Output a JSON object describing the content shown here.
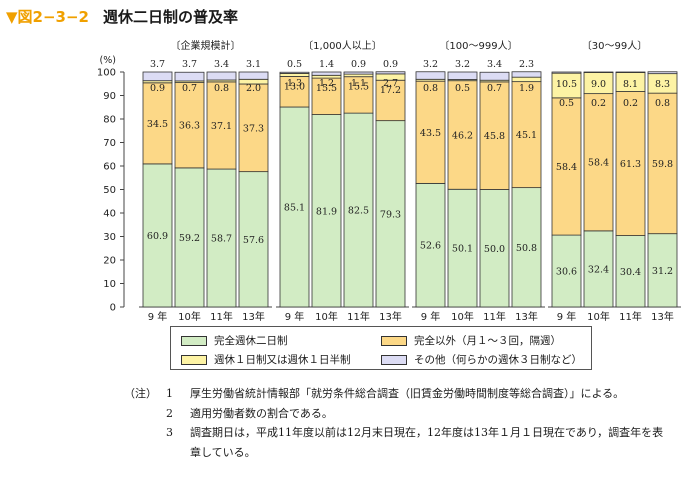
{
  "figure": {
    "number": "▼図2−3−2",
    "title": "週休二日制の普及率"
  },
  "chart_data": {
    "type": "bar",
    "stacked": true,
    "ylabel": "(%)",
    "ylim": [
      0,
      100
    ],
    "yticks": [
      0,
      10,
      20,
      30,
      40,
      50,
      60,
      70,
      80,
      90,
      100
    ],
    "colors": [
      "#d2ecc4",
      "#fcd887",
      "#fdf3a4",
      "#dcdcf4"
    ],
    "groups": [
      {
        "label": "〔企業規模計〕",
        "categories": [
          "9 年",
          "10年",
          "11年",
          "13年"
        ],
        "series": [
          {
            "name": "完全週休二日制",
            "values": [
              60.9,
              59.2,
              58.7,
              57.6
            ]
          },
          {
            "name": "完全以外（月１〜３回，隔週）",
            "values": [
              34.5,
              36.3,
              37.1,
              37.3
            ]
          },
          {
            "name": "週休１日制又は週休１日半制",
            "values": [
              0.9,
              0.7,
              0.8,
              2.0
            ]
          },
          {
            "name": "その他（何らかの週休３日制など）",
            "values": [
              3.7,
              3.7,
              3.4,
              3.1
            ]
          }
        ]
      },
      {
        "label": "〔1,000人以上〕",
        "categories": [
          "9 年",
          "10年",
          "11年",
          "13年"
        ],
        "series": [
          {
            "name": "完全週休二日制",
            "values": [
              85.1,
              81.9,
              82.5,
              79.3
            ]
          },
          {
            "name": "完全以外（月１〜３回，隔週）",
            "values": [
              13.0,
              15.5,
              15.5,
              17.2
            ]
          },
          {
            "name": "週休１日制又は週休１日半制",
            "values": [
              1.3,
              1.2,
              1.1,
              2.7
            ]
          },
          {
            "name": "その他（何らかの週休３日制など）",
            "values": [
              0.5,
              1.4,
              0.9,
              0.9
            ]
          }
        ]
      },
      {
        "label": "〔100〜999人〕",
        "categories": [
          "9 年",
          "10年",
          "11年",
          "13年"
        ],
        "series": [
          {
            "name": "完全週休二日制",
            "values": [
              52.6,
              50.1,
              50.0,
              50.8
            ]
          },
          {
            "name": "完全以外（月１〜３回，隔週）",
            "values": [
              43.5,
              46.2,
              45.8,
              45.1
            ]
          },
          {
            "name": "週休１日制又は週休１日半制",
            "values": [
              0.8,
              0.5,
              0.7,
              1.9
            ]
          },
          {
            "name": "その他（何らかの週休３日制など）",
            "values": [
              3.2,
              3.2,
              3.4,
              2.3
            ]
          }
        ]
      },
      {
        "label": "〔30〜99人〕",
        "categories": [
          "9 年",
          "10年",
          "11年",
          "13年"
        ],
        "series": [
          {
            "name": "完全週休二日制",
            "values": [
              30.6,
              32.4,
              30.4,
              31.2
            ]
          },
          {
            "name": "完全以外（月１〜３回，隔週）",
            "values": [
              58.4,
              58.4,
              61.3,
              59.8
            ]
          },
          {
            "name": "週休１日制又は週休１日半制",
            "values": [
              10.5,
              9.0,
              8.1,
              8.3
            ]
          },
          {
            "name": "その他（何らかの週休３日制など）",
            "values": [
              0.5,
              0.2,
              0.2,
              0.8
            ]
          }
        ]
      }
    ]
  },
  "legend": [
    {
      "label": "完全週休二日制",
      "color": "#d2ecc4"
    },
    {
      "label": "完全以外（月１〜３回，隔週）",
      "color": "#fcd887"
    },
    {
      "label": "週休１日制又は週休１日半制",
      "color": "#fdf3a4"
    },
    {
      "label": "その他（何らかの週休３日制など）",
      "color": "#dcdcf4"
    }
  ],
  "notes": {
    "label": "（注）",
    "items": [
      {
        "num": "1",
        "text": "厚生労働省統計情報部「就労条件総合調査（旧賃金労働時間制度等総合調査）」による。"
      },
      {
        "num": "2",
        "text": "適用労働者数の割合である。"
      },
      {
        "num": "3",
        "text": "調査期日は，平成11年度以前は12月末日現在，12年度は13年１月１日現在であり，調査年を表章している。"
      }
    ]
  }
}
